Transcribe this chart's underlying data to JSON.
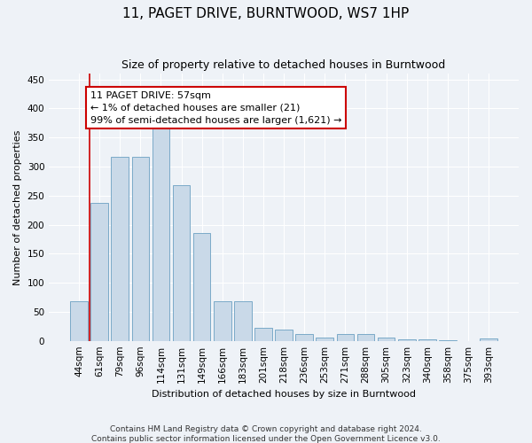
{
  "title": "11, PAGET DRIVE, BURNTWOOD, WS7 1HP",
  "subtitle": "Size of property relative to detached houses in Burntwood",
  "xlabel": "Distribution of detached houses by size in Burntwood",
  "ylabel": "Number of detached properties",
  "categories": [
    "44sqm",
    "61sqm",
    "79sqm",
    "96sqm",
    "114sqm",
    "131sqm",
    "149sqm",
    "166sqm",
    "183sqm",
    "201sqm",
    "218sqm",
    "236sqm",
    "253sqm",
    "271sqm",
    "288sqm",
    "305sqm",
    "323sqm",
    "340sqm",
    "358sqm",
    "375sqm",
    "393sqm"
  ],
  "values": [
    68,
    237,
    316,
    316,
    370,
    268,
    185,
    68,
    68,
    22,
    20,
    11,
    6,
    11,
    11,
    5,
    2,
    2,
    1,
    0,
    4
  ],
  "bar_color": "#c9d9e8",
  "bar_edge_color": "#7aaac8",
  "annotation_text": "11 PAGET DRIVE: 57sqm\n← 1% of detached houses are smaller (21)\n99% of semi-detached houses are larger (1,621) →",
  "annotation_box_color": "#ffffff",
  "annotation_box_edge": "#cc0000",
  "vline_color": "#cc0000",
  "footnote": "Contains HM Land Registry data © Crown copyright and database right 2024.\nContains public sector information licensed under the Open Government Licence v3.0.",
  "ylim": [
    0,
    460
  ],
  "yticks": [
    0,
    50,
    100,
    150,
    200,
    250,
    300,
    350,
    400,
    450
  ],
  "background_color": "#eef2f7",
  "plot_bg_color": "#eef2f7",
  "title_fontsize": 11,
  "subtitle_fontsize": 9,
  "axis_label_fontsize": 8,
  "tick_fontsize": 7.5,
  "annotation_fontsize": 8,
  "footnote_fontsize": 6.5
}
